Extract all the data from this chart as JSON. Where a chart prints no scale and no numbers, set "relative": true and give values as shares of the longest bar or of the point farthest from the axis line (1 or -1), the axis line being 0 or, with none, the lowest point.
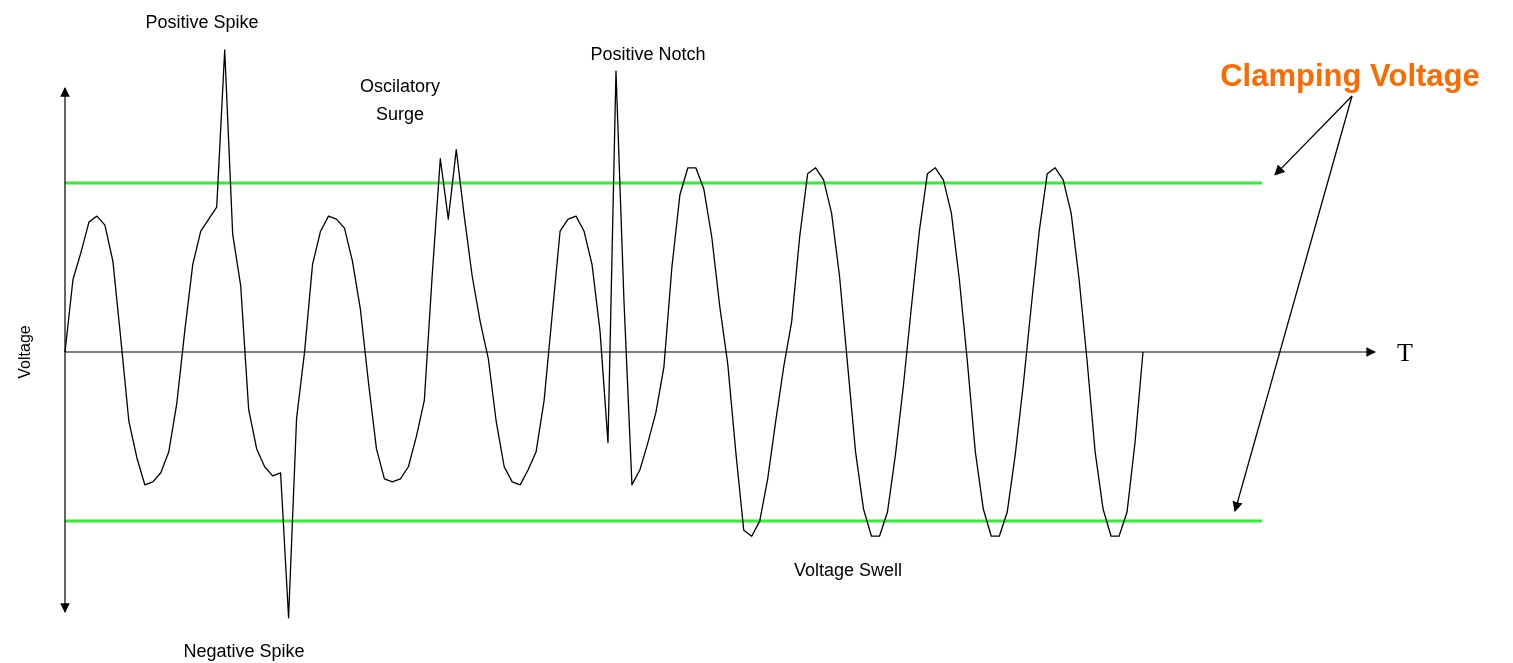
{
  "chart_data": {
    "type": "line",
    "ylabel": "Voltage",
    "relative": true,
    "categories": [
      null,
      null,
      null,
      null,
      null,
      null,
      null,
      null,
      null,
      null,
      null,
      null,
      null,
      null,
      null,
      null,
      null,
      null,
      null,
      null,
      null,
      null,
      null,
      null,
      null,
      null,
      null,
      null,
      null,
      null,
      null,
      null,
      null,
      null,
      null,
      null,
      null,
      null,
      null,
      null,
      null,
      null,
      null,
      null,
      null,
      null,
      null,
      null,
      null,
      null,
      null,
      null,
      null,
      null,
      null,
      null,
      null,
      null,
      null,
      null,
      null,
      null,
      null,
      null,
      null,
      null,
      null,
      null,
      null,
      null,
      null,
      null,
      null,
      null,
      null,
      null,
      null,
      null,
      null,
      null,
      null,
      null,
      null,
      null,
      null,
      null,
      null,
      null,
      null,
      null,
      null,
      null,
      null,
      null,
      null,
      null,
      null,
      null,
      null,
      null,
      null,
      null,
      null,
      null,
      null,
      null,
      null,
      null,
      null,
      null,
      null,
      null,
      null,
      null,
      null,
      null,
      null,
      null,
      null,
      null,
      null,
      null,
      null,
      null,
      null,
      null,
      null,
      null,
      null,
      null,
      null,
      null,
      null,
      null,
      null,
      null
    ],
    "series": [
      {
        "color": "#000000",
        "values": [
          0,
          0.24,
          0.33,
          0.43,
          0.45,
          0.42,
          0.3,
          0.04,
          -0.23,
          -0.35,
          -0.44,
          -0.43,
          -0.4,
          -0.33,
          -0.17,
          0.07,
          0.29,
          0.4,
          0.44,
          0.48,
          1,
          0.39,
          0.22,
          -0.19,
          -0.32,
          -0.38,
          -0.41,
          -0.4,
          -0.88,
          -0.22,
          0,
          0.29,
          0.4,
          0.45,
          0.44,
          0.41,
          0.3,
          0.14,
          -0.1,
          -0.32,
          -0.42,
          -0.43,
          -0.42,
          -0.38,
          -0.28,
          -0.16,
          0.26,
          0.64,
          0.44,
          0.67,
          0.45,
          0.25,
          0.1,
          -0.02,
          -0.23,
          -0.38,
          -0.43,
          -0.44,
          -0.39,
          -0.33,
          -0.16,
          0.12,
          0.4,
          0.44,
          0.45,
          0.4,
          0.29,
          0.07,
          -0.3,
          0.93,
          0.17,
          -0.44,
          -0.39,
          -0.3,
          -0.2,
          -0.05,
          0.28,
          0.52,
          0.61,
          0.61,
          0.54,
          0.38,
          0.15,
          -0.04,
          -0.33,
          -0.59,
          -0.61,
          -0.56,
          -0.42,
          -0.23,
          -0.05,
          0.1,
          0.38,
          0.59,
          0.61,
          0.57,
          0.46,
          0.25,
          -0.04,
          -0.33,
          -0.52,
          -0.61,
          -0.61,
          -0.53,
          -0.34,
          -0.11,
          0.15,
          0.4,
          0.59,
          0.61,
          0.57,
          0.46,
          0.24,
          -0.03,
          -0.33,
          -0.52,
          -0.61,
          -0.61,
          -0.53,
          -0.34,
          -0.11,
          0.15,
          0.4,
          0.59,
          0.61,
          0.57,
          0.46,
          0.24,
          -0.03,
          -0.33,
          -0.52,
          -0.61,
          -0.61,
          -0.53,
          -0.3,
          0
        ]
      }
    ],
    "ref_lines": [
      {
        "axis": "y",
        "value": 0.56,
        "color": "#33ee33"
      },
      {
        "axis": "y",
        "value": -0.56,
        "color": "#33ee33"
      }
    ],
    "annotations": [
      "Positive Spike",
      "Oscilatory Surge",
      "Positive Notch",
      "Negative Spike",
      "Voltage Swell",
      "Clamping Voltage",
      "T"
    ]
  }
}
